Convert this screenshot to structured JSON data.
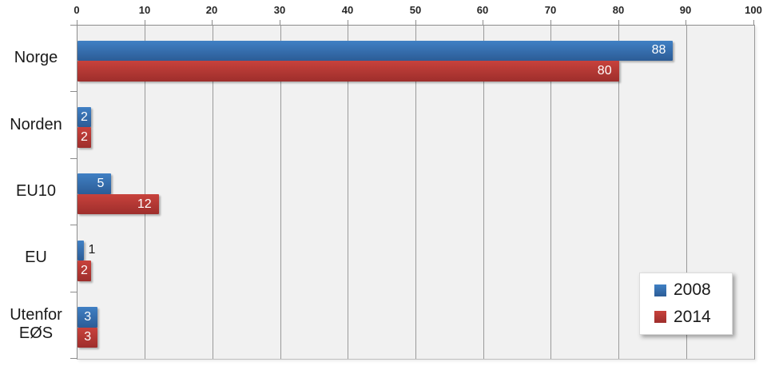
{
  "chart_data": {
    "type": "bar",
    "orientation": "horizontal",
    "title": "",
    "categories": [
      "Norge",
      "Norden",
      "EU10",
      "EU",
      "Utenfor EØS"
    ],
    "series": [
      {
        "name": "2008",
        "values": [
          88,
          2,
          5,
          1,
          3
        ],
        "color_top": "#4080c4",
        "color_bottom": "#2c5c96"
      },
      {
        "name": "2014",
        "values": [
          80,
          2,
          12,
          2,
          3
        ],
        "color_top": "#c8423c",
        "color_bottom": "#9e2e2c"
      }
    ],
    "xlim": [
      0,
      100
    ],
    "x_ticks": [
      0,
      10,
      20,
      30,
      40,
      50,
      60,
      70,
      80,
      90,
      100
    ],
    "axis_position": "top",
    "grid": true,
    "legend_position": "bottom-right",
    "colors": {
      "plot_background": "#f1f1f1",
      "gridline": "#9a9a9a",
      "axis_line": "#8c8c8c",
      "tick_label": "#262626",
      "value_label_inside": "#ffffff",
      "value_label_outside": "#1a1a1a",
      "chart_background": "#ffffff"
    }
  }
}
